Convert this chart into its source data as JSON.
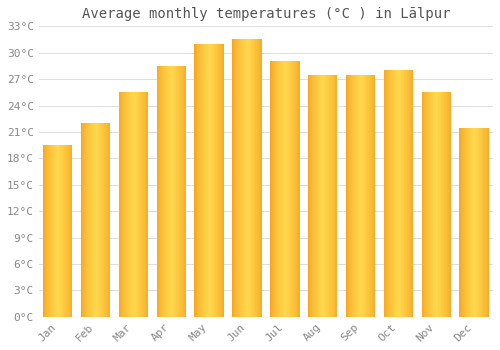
{
  "title": "Average monthly temperatures (°C ) in Lālpur",
  "months": [
    "Jan",
    "Feb",
    "Mar",
    "Apr",
    "May",
    "Jun",
    "Jul",
    "Aug",
    "Sep",
    "Oct",
    "Nov",
    "Dec"
  ],
  "values": [
    19.5,
    22.0,
    25.5,
    28.5,
    31.0,
    31.5,
    29.0,
    27.5,
    27.5,
    28.0,
    25.5,
    21.5
  ],
  "bar_color_center": "#FFD84D",
  "bar_color_edge": "#F5A623",
  "ylim": [
    0,
    33
  ],
  "yticks": [
    0,
    3,
    6,
    9,
    12,
    15,
    18,
    21,
    24,
    27,
    30,
    33
  ],
  "ytick_labels": [
    "0°C",
    "3°C",
    "6°C",
    "9°C",
    "12°C",
    "15°C",
    "18°C",
    "21°C",
    "24°C",
    "27°C",
    "30°C",
    "33°C"
  ],
  "background_color": "#FFFFFF",
  "grid_color": "#DDDDDD",
  "title_fontsize": 10,
  "tick_fontsize": 8,
  "font_color": "#888888",
  "title_color": "#555555"
}
